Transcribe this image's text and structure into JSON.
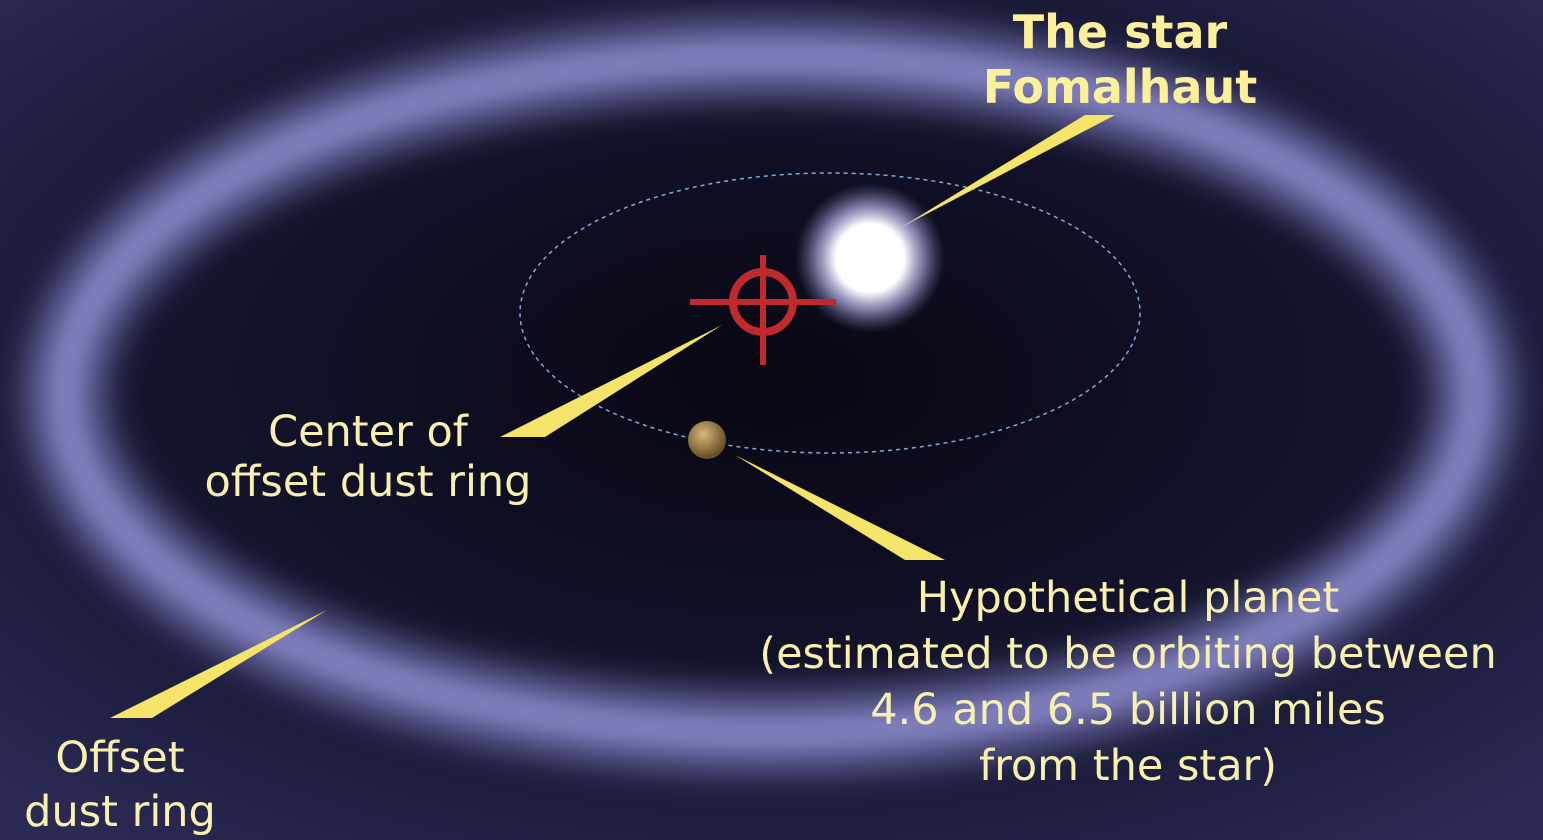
{
  "annotations": {
    "star": {
      "lines": [
        "The star",
        "Fomalhaut"
      ]
    },
    "center": {
      "lines": [
        "Center of",
        "offset dust ring"
      ]
    },
    "planet": {
      "lines": [
        "Hypothetical planet",
        "(estimated to be orbiting between",
        "4.6 and 6.5 billion miles",
        "from the star)"
      ]
    },
    "ring": {
      "lines": [
        "Offset",
        "dust ring"
      ]
    }
  }
}
